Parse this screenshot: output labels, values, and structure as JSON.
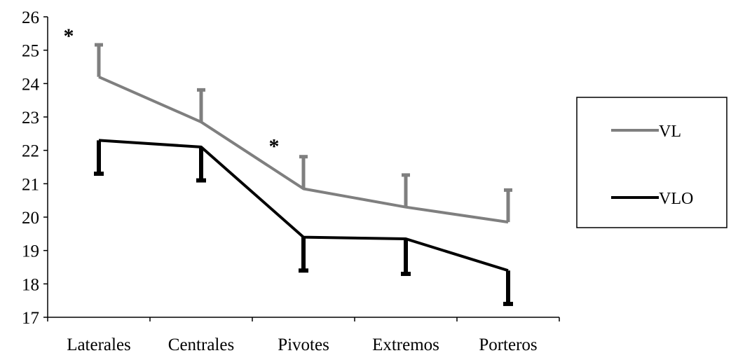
{
  "chart_data": {
    "type": "line",
    "title": "",
    "xlabel": "",
    "ylabel": "",
    "categories": [
      "Laterales",
      "Centrales",
      "Pivotes",
      "Extremos",
      "Porteros"
    ],
    "ylim": [
      17,
      26
    ],
    "yticks": [
      17,
      18,
      19,
      20,
      21,
      22,
      23,
      24,
      25,
      26
    ],
    "grid": false,
    "legend_position": "right",
    "series": [
      {
        "name": "VL",
        "color": "#7f7f7f",
        "values": [
          24.2,
          22.85,
          20.85,
          20.3,
          19.85
        ],
        "error_plus": [
          0.95,
          0.95,
          0.95,
          0.95,
          0.95
        ]
      },
      {
        "name": "VLO",
        "color": "#000000",
        "values": [
          22.3,
          22.1,
          19.4,
          19.35,
          18.4
        ],
        "error_minus": [
          1.0,
          1.0,
          1.0,
          1.05,
          1.0
        ]
      }
    ],
    "annotations": [
      {
        "text": "*",
        "category_index": 0,
        "y": 25.6
      },
      {
        "text": "*",
        "category_index": 2,
        "y": 22.3
      }
    ]
  }
}
